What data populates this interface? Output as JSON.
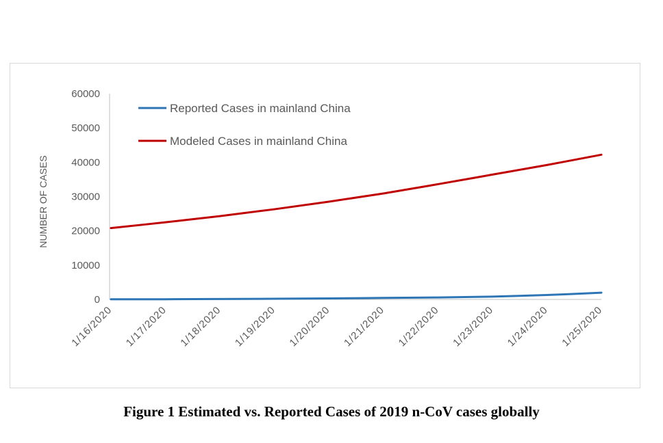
{
  "chart_data": {
    "type": "line",
    "title": "",
    "xlabel": "",
    "ylabel": "NUMBER OF CASES",
    "ylim": [
      0,
      60000
    ],
    "yticks": [
      0,
      10000,
      20000,
      30000,
      40000,
      50000,
      60000
    ],
    "grid": false,
    "legend_position": "top-left",
    "categories": [
      "1/16/2020",
      "1/17/2020",
      "1/18/2020",
      "1/19/2020",
      "1/20/2020",
      "1/21/2020",
      "1/22/2020",
      "1/23/2020",
      "1/24/2020",
      "1/25/2020"
    ],
    "series": [
      {
        "name": "Reported Cases in mainland China",
        "color": "#2e75b6",
        "values": [
          45,
          62,
          121,
          198,
          291,
          440,
          571,
          830,
          1287,
          1975
        ]
      },
      {
        "name": "Modeled Cases in mainland China",
        "color": "#c00000",
        "values": [
          20800,
          22500,
          24300,
          26300,
          28500,
          30900,
          33600,
          36400,
          39200,
          42200
        ]
      }
    ]
  },
  "caption": "Figure 1 Estimated vs. Reported Cases of 2019 n-CoV cases globally"
}
